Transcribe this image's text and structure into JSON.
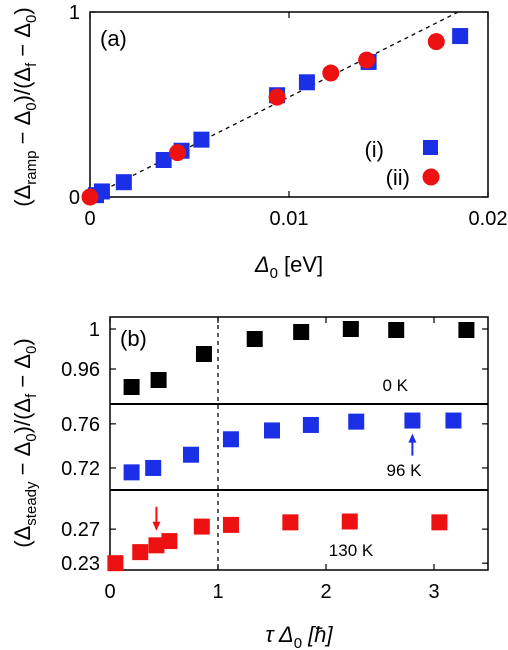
{
  "colors": {
    "blue": "#1a2fe6",
    "red": "#ee1111",
    "black": "#000000",
    "label_blue": "#0000cc",
    "label_red": "#ee1111"
  },
  "chart_data": [
    {
      "type": "scatter",
      "panel_label": "(a)",
      "xlabel_parts": {
        "sym": "Δ",
        "sub": "0",
        "unit": " [eV]"
      },
      "ylabel_parts": {
        "open": "(Δ",
        "sub1": "ramp",
        "mid": " − Δ",
        "sub2": "0",
        "mid2": ")/(Δ",
        "sub3": "f",
        "mid3": " − Δ",
        "sub4": "0",
        "close": ")"
      },
      "xlim": [
        0,
        0.02
      ],
      "ylim": [
        0,
        1
      ],
      "xticks": [
        {
          "v": 0,
          "label": "0"
        },
        {
          "v": 0.01,
          "label": "0.01"
        },
        {
          "v": 0.02,
          "label": "0.02"
        }
      ],
      "yticks": [
        {
          "v": 0,
          "label": "0"
        },
        {
          "v": 1,
          "label": "1"
        }
      ],
      "reference_line": {
        "style": "dashed",
        "x": [
          0,
          0.0185
        ],
        "y": [
          0,
          1.0
        ]
      },
      "legend_position": "lower-right",
      "series": [
        {
          "name": "(i)",
          "marker": "square",
          "color": "#1a2fe6",
          "points": [
            {
              "x": 0.0003,
              "y": 0.01
            },
            {
              "x": 0.0006,
              "y": 0.03
            },
            {
              "x": 0.0017,
              "y": 0.08
            },
            {
              "x": 0.0037,
              "y": 0.2
            },
            {
              "x": 0.0046,
              "y": 0.25
            },
            {
              "x": 0.0056,
              "y": 0.31
            },
            {
              "x": 0.0094,
              "y": 0.55
            },
            {
              "x": 0.0109,
              "y": 0.62
            },
            {
              "x": 0.014,
              "y": 0.73
            },
            {
              "x": 0.0186,
              "y": 0.87
            }
          ]
        },
        {
          "name": "(ii)",
          "marker": "circle",
          "color": "#ee1111",
          "points": [
            {
              "x": 0.0,
              "y": 0.0
            },
            {
              "x": 0.0044,
              "y": 0.24
            },
            {
              "x": 0.0094,
              "y": 0.54
            },
            {
              "x": 0.0121,
              "y": 0.67
            },
            {
              "x": 0.0139,
              "y": 0.74
            },
            {
              "x": 0.0174,
              "y": 0.84
            }
          ]
        }
      ]
    },
    {
      "type": "scatter",
      "panel_label": "(b)",
      "xlabel_parts": {
        "sym": "τ Δ",
        "sub": "0",
        "unit": " [ħ]"
      },
      "ylabel_parts": {
        "open": "(Δ",
        "sub1": "steady",
        "mid": " − Δ",
        "sub2": "0",
        "mid2": ")/(Δ",
        "sub3": "f",
        "mid3": " − Δ",
        "sub4": "0",
        "close": ")"
      },
      "xlim": [
        0,
        3.5
      ],
      "xticks": [
        {
          "v": 0,
          "label": "0"
        },
        {
          "v": 1,
          "label": "1"
        },
        {
          "v": 2,
          "label": "2"
        },
        {
          "v": 3,
          "label": "3"
        }
      ],
      "reference_line": {
        "style": "dashed",
        "x": 1
      },
      "subpanels": [
        {
          "label": "0 K",
          "label_color": "#000000",
          "color": "#000000",
          "ylim": [
            0.925,
            1.012
          ],
          "yticks": [
            {
              "v": 0.96,
              "label": "0.96"
            },
            {
              "v": 1.0,
              "label": "1"
            }
          ],
          "points": [
            {
              "x": 0.2,
              "y": 0.942
            },
            {
              "x": 0.45,
              "y": 0.949
            },
            {
              "x": 0.87,
              "y": 0.975
            },
            {
              "x": 1.34,
              "y": 0.99
            },
            {
              "x": 1.77,
              "y": 0.997
            },
            {
              "x": 2.23,
              "y": 1.0
            },
            {
              "x": 2.65,
              "y": 0.999
            },
            {
              "x": 3.3,
              "y": 0.999
            }
          ]
        },
        {
          "label": "96 K",
          "label_color": "#0000cc",
          "color": "#1a2fe6",
          "ylim": [
            0.7,
            0.778
          ],
          "yticks": [
            {
              "v": 0.72,
              "label": "0.72"
            },
            {
              "v": 0.76,
              "label": "0.76"
            }
          ],
          "arrow_at": {
            "x": 2.8,
            "y": 0.762
          },
          "points": [
            {
              "x": 0.2,
              "y": 0.716
            },
            {
              "x": 0.4,
              "y": 0.72
            },
            {
              "x": 0.75,
              "y": 0.732
            },
            {
              "x": 1.12,
              "y": 0.746
            },
            {
              "x": 1.5,
              "y": 0.754
            },
            {
              "x": 1.86,
              "y": 0.759
            },
            {
              "x": 2.28,
              "y": 0.762
            },
            {
              "x": 2.8,
              "y": 0.763
            },
            {
              "x": 3.18,
              "y": 0.763
            }
          ]
        },
        {
          "label": "130 K",
          "label_color": "#ee1111",
          "color": "#ee1111",
          "ylim": [
            0.222,
            0.316
          ],
          "yticks": [
            {
              "v": 0.23,
              "label": "0.23"
            },
            {
              "v": 0.27,
              "label": "0.27"
            }
          ],
          "arrow_at": {
            "x": 0.43,
            "y": 0.254
          },
          "points": [
            {
              "x": 0.05,
              "y": 0.23
            },
            {
              "x": 0.28,
              "y": 0.243
            },
            {
              "x": 0.43,
              "y": 0.251
            },
            {
              "x": 0.55,
              "y": 0.256
            },
            {
              "x": 0.85,
              "y": 0.273
            },
            {
              "x": 1.12,
              "y": 0.275
            },
            {
              "x": 1.67,
              "y": 0.278
            },
            {
              "x": 2.22,
              "y": 0.279
            },
            {
              "x": 3.05,
              "y": 0.278
            }
          ]
        }
      ]
    }
  ]
}
